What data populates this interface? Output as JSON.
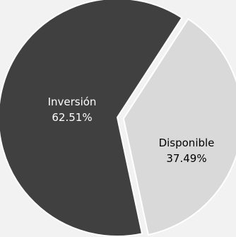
{
  "chart_data": {
    "type": "pie",
    "title": "",
    "categories": [
      "Inversión",
      "Disponible"
    ],
    "values": [
      62.51,
      37.49
    ],
    "data_labels": [
      "62.51%",
      "37.49%"
    ],
    "colors": [
      "#404040",
      "#d9d9d9"
    ],
    "label_colors": [
      "#ffffff",
      "#000000"
    ],
    "exploded": "Disponible",
    "legend": "none"
  },
  "background_color": "#f2f2f2",
  "slice_border_color": "#ffffff"
}
